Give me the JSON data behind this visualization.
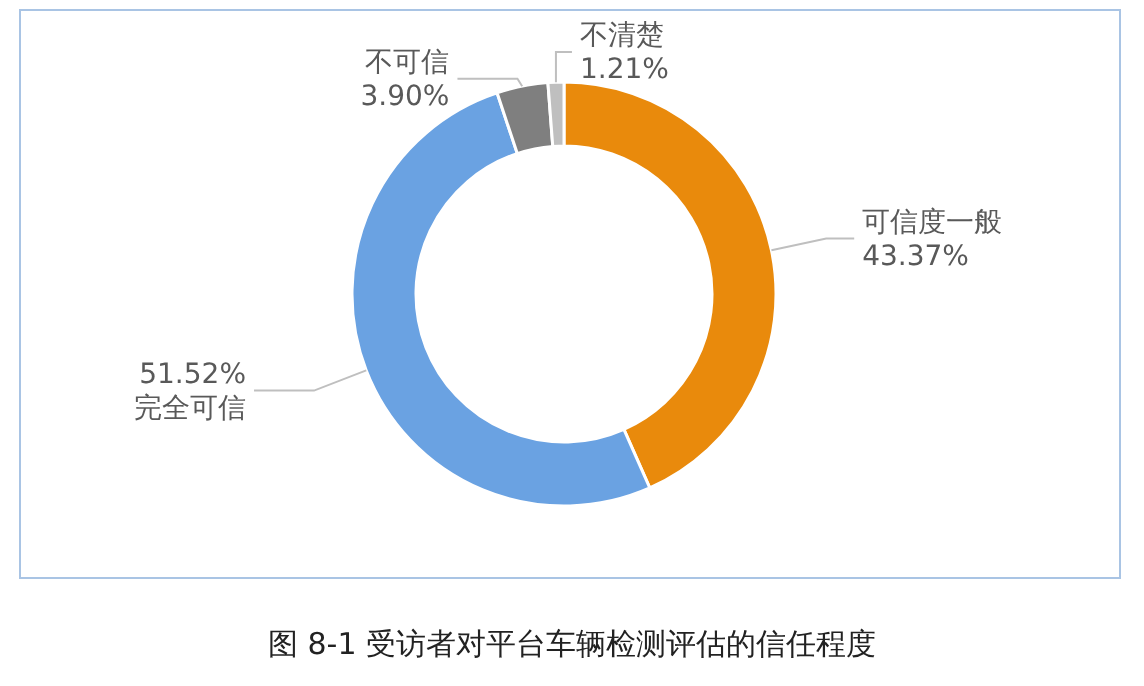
{
  "chart_data": {
    "type": "donut",
    "title": "图 8-1  受访者对平台车辆检测评估的信任程度",
    "categories": [
      "可信度一般",
      "完全可信",
      "不可信",
      "不清楚"
    ],
    "values": [
      43.37,
      51.52,
      3.9,
      1.21
    ],
    "colors": [
      "#e98a0c",
      "#6aa2e2",
      "#7f7f7f",
      "#bfbfbf"
    ],
    "value_labels": [
      "43.37%",
      "51.52%",
      "3.90%",
      "1.21%"
    ]
  }
}
